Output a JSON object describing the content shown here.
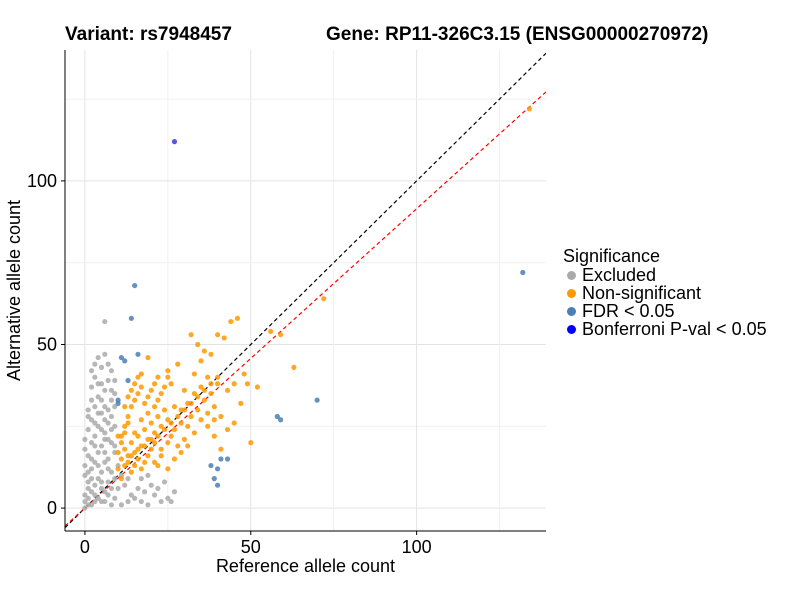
{
  "chart_data": {
    "type": "scatter",
    "title_left": "Variant: rs7948457",
    "title_right": "Gene: RP11-326C3.15 (ENSG00000270972)",
    "xlabel": "Reference allele count",
    "ylabel": "Alternative allele count",
    "xlim": [
      -6,
      139
    ],
    "ylim": [
      -7,
      140
    ],
    "xticks": [
      0,
      50,
      100
    ],
    "yticks": [
      0,
      50,
      100
    ],
    "grid": true,
    "reference_lines": [
      {
        "kind": "identity",
        "color": "#000000",
        "dash": true,
        "slope": 1.0,
        "intercept": 0
      },
      {
        "kind": "fitted",
        "color": "#ff0000",
        "dash": true,
        "slope": 0.915,
        "intercept": 0
      }
    ],
    "legend": {
      "title": "Significance",
      "placement": "right",
      "entries": [
        {
          "label": "Excluded",
          "color": "#aaaaaa"
        },
        {
          "label": "Non-significant",
          "color": "#ff9900"
        },
        {
          "label": "FDR < 0.05",
          "color": "#4a7fb5"
        },
        {
          "label": "Bonferroni P-val < 0.05",
          "color": "#0000ff"
        }
      ]
    },
    "series": [
      {
        "name": "Excluded",
        "color": "#aaaaaa",
        "points": [
          [
            0,
            0
          ],
          [
            1,
            1
          ],
          [
            2,
            1
          ],
          [
            3,
            2
          ],
          [
            1,
            3
          ],
          [
            0,
            4
          ],
          [
            2,
            5
          ],
          [
            4,
            3
          ],
          [
            5,
            6
          ],
          [
            3,
            7
          ],
          [
            1,
            8
          ],
          [
            0,
            10
          ],
          [
            2,
            12
          ],
          [
            4,
            9
          ],
          [
            6,
            5
          ],
          [
            7,
            8
          ],
          [
            5,
            11
          ],
          [
            3,
            14
          ],
          [
            1,
            16
          ],
          [
            0,
            18
          ],
          [
            2,
            20
          ],
          [
            4,
            17
          ],
          [
            6,
            14
          ],
          [
            8,
            11
          ],
          [
            9,
            3
          ],
          [
            8,
            1
          ],
          [
            6,
            2
          ],
          [
            7,
            15
          ],
          [
            5,
            19
          ],
          [
            3,
            22
          ],
          [
            1,
            24
          ],
          [
            2,
            27
          ],
          [
            4,
            25
          ],
          [
            6,
            23
          ],
          [
            8,
            20
          ],
          [
            9,
            17
          ],
          [
            7,
            26
          ],
          [
            5,
            29
          ],
          [
            3,
            31
          ],
          [
            4,
            34
          ],
          [
            6,
            31
          ],
          [
            8,
            28
          ],
          [
            9,
            25
          ],
          [
            2,
            33
          ],
          [
            4,
            38
          ],
          [
            6,
            36
          ],
          [
            8,
            33
          ],
          [
            3,
            40
          ],
          [
            5,
            43
          ],
          [
            7,
            39
          ],
          [
            4,
            46
          ],
          [
            6,
            47
          ],
          [
            3,
            44
          ],
          [
            6,
            57
          ],
          [
            9,
            39
          ],
          [
            8,
            42
          ],
          [
            11,
            1
          ],
          [
            13,
            2
          ],
          [
            15,
            3
          ],
          [
            17,
            2
          ],
          [
            19,
            1
          ],
          [
            21,
            4
          ],
          [
            23,
            2
          ],
          [
            18,
            5
          ],
          [
            16,
            6
          ],
          [
            14,
            4
          ],
          [
            12,
            7
          ],
          [
            10,
            6
          ],
          [
            20,
            7
          ],
          [
            22,
            6
          ],
          [
            25,
            3
          ],
          [
            27,
            5
          ],
          [
            26,
            2
          ],
          [
            13,
            9
          ],
          [
            11,
            10
          ],
          [
            17,
            9
          ],
          [
            19,
            10
          ],
          [
            24,
            8
          ],
          [
            10,
            13
          ],
          [
            5,
            2
          ],
          [
            1,
            6
          ],
          [
            2,
            9
          ],
          [
            7,
            4
          ],
          [
            0,
            13
          ],
          [
            3,
            19
          ],
          [
            6,
            21
          ],
          [
            8,
            24
          ],
          [
            1,
            28
          ],
          [
            5,
            33
          ],
          [
            7,
            30
          ],
          [
            9,
            35
          ],
          [
            2,
            37
          ],
          [
            0,
            2
          ],
          [
            1,
            11
          ],
          [
            3,
            4
          ],
          [
            5,
            8
          ],
          [
            7,
            12
          ],
          [
            9,
            9
          ],
          [
            4,
            13
          ],
          [
            6,
            17
          ],
          [
            8,
            6
          ],
          [
            2,
            15
          ],
          [
            0,
            21
          ],
          [
            3,
            26
          ],
          [
            5,
            24
          ],
          [
            7,
            21
          ],
          [
            9,
            19
          ],
          [
            1,
            30
          ],
          [
            4,
            29
          ],
          [
            6,
            27
          ],
          [
            8,
            36
          ],
          [
            2,
            42
          ],
          [
            5,
            38
          ],
          [
            7,
            44
          ],
          [
            9,
            31
          ]
        ]
      },
      {
        "name": "Non-significant",
        "color": "#ff9900",
        "points": [
          [
            10,
            12
          ],
          [
            11,
            15
          ],
          [
            12,
            18
          ],
          [
            13,
            14
          ],
          [
            14,
            20
          ],
          [
            15,
            17
          ],
          [
            16,
            22
          ],
          [
            17,
            19
          ],
          [
            18,
            24
          ],
          [
            19,
            21
          ],
          [
            20,
            26
          ],
          [
            21,
            23
          ],
          [
            22,
            28
          ],
          [
            23,
            25
          ],
          [
            24,
            30
          ],
          [
            25,
            27
          ],
          [
            11,
            20
          ],
          [
            12,
            23
          ],
          [
            13,
            26
          ],
          [
            14,
            11
          ],
          [
            15,
            13
          ],
          [
            16,
            15
          ],
          [
            17,
            12
          ],
          [
            18,
            14
          ],
          [
            19,
            16
          ],
          [
            20,
            18
          ],
          [
            21,
            20
          ],
          [
            22,
            13
          ],
          [
            10,
            17
          ],
          [
            11,
            22
          ],
          [
            12,
            25
          ],
          [
            13,
            28
          ],
          [
            14,
            31
          ],
          [
            15,
            33
          ],
          [
            16,
            35
          ],
          [
            17,
            37
          ],
          [
            18,
            32
          ],
          [
            19,
            34
          ],
          [
            20,
            36
          ],
          [
            21,
            38
          ],
          [
            22,
            33
          ],
          [
            23,
            35
          ],
          [
            24,
            37
          ],
          [
            25,
            40
          ],
          [
            26,
            22
          ],
          [
            27,
            24
          ],
          [
            28,
            19
          ],
          [
            29,
            17
          ],
          [
            30,
            21
          ],
          [
            31,
            25
          ],
          [
            32,
            28
          ],
          [
            33,
            23
          ],
          [
            34,
            30
          ],
          [
            35,
            27
          ],
          [
            36,
            33
          ],
          [
            37,
            29
          ],
          [
            38,
            35
          ],
          [
            39,
            31
          ],
          [
            40,
            38
          ],
          [
            12,
            31
          ],
          [
            14,
            36
          ],
          [
            16,
            40
          ],
          [
            13,
            34
          ],
          [
            15,
            38
          ],
          [
            26,
            38
          ],
          [
            30,
            36
          ],
          [
            28,
            44
          ],
          [
            32,
            53
          ],
          [
            34,
            50
          ],
          [
            36,
            48
          ],
          [
            38,
            47
          ],
          [
            40,
            53
          ],
          [
            42,
            52
          ],
          [
            44,
            57
          ],
          [
            46,
            58
          ],
          [
            48,
            41
          ],
          [
            49,
            38
          ],
          [
            52,
            37
          ],
          [
            56,
            54
          ],
          [
            59,
            53
          ],
          [
            63,
            43
          ],
          [
            72,
            64
          ],
          [
            45,
            26
          ],
          [
            47,
            32
          ],
          [
            50,
            20
          ],
          [
            25,
            42
          ],
          [
            22,
            40
          ],
          [
            19,
            46
          ],
          [
            17,
            41
          ],
          [
            21,
            14
          ],
          [
            23,
            16
          ],
          [
            25,
            12
          ],
          [
            27,
            15
          ],
          [
            29,
            30
          ],
          [
            31,
            32
          ],
          [
            33,
            35
          ],
          [
            35,
            37
          ],
          [
            37,
            40
          ],
          [
            39,
            22
          ],
          [
            41,
            18
          ],
          [
            43,
            24
          ],
          [
            10,
            22
          ],
          [
            11,
            9
          ],
          [
            13,
            16
          ],
          [
            15,
            23
          ],
          [
            17,
            27
          ],
          [
            19,
            29
          ],
          [
            21,
            31
          ],
          [
            23,
            18
          ],
          [
            25,
            20
          ],
          [
            27,
            31
          ],
          [
            29,
            26
          ],
          [
            31,
            19
          ],
          [
            33,
            41
          ],
          [
            35,
            45
          ],
          [
            37,
            25
          ],
          [
            39,
            27
          ],
          [
            41,
            28
          ],
          [
            43,
            36
          ],
          [
            45,
            38
          ],
          [
            12,
            13
          ],
          [
            14,
            16
          ],
          [
            16,
            18
          ],
          [
            18,
            19
          ],
          [
            20,
            21
          ],
          [
            22,
            22
          ],
          [
            24,
            24
          ],
          [
            26,
            26
          ],
          [
            28,
            28
          ],
          [
            30,
            30
          ],
          [
            32,
            32
          ],
          [
            34,
            34
          ],
          [
            36,
            36
          ],
          [
            38,
            38
          ],
          [
            40,
            40
          ],
          [
            134,
            122
          ]
        ]
      },
      {
        "name": "FDR < 0.05",
        "color": "#4a7fb5",
        "points": [
          [
            15,
            68
          ],
          [
            14,
            58
          ],
          [
            16,
            47
          ],
          [
            11,
            46
          ],
          [
            12,
            45
          ],
          [
            13,
            39
          ],
          [
            10,
            33
          ],
          [
            10,
            32
          ],
          [
            58,
            28
          ],
          [
            59,
            27
          ],
          [
            70,
            33
          ],
          [
            38,
            13
          ],
          [
            40,
            12
          ],
          [
            41,
            15
          ],
          [
            39,
            9
          ],
          [
            43,
            15
          ],
          [
            40,
            7
          ],
          [
            132,
            72
          ]
        ]
      },
      {
        "name": "Bonferroni P-val < 0.05",
        "color": "#3b3bd6",
        "points": [
          [
            27,
            112
          ]
        ]
      }
    ]
  }
}
